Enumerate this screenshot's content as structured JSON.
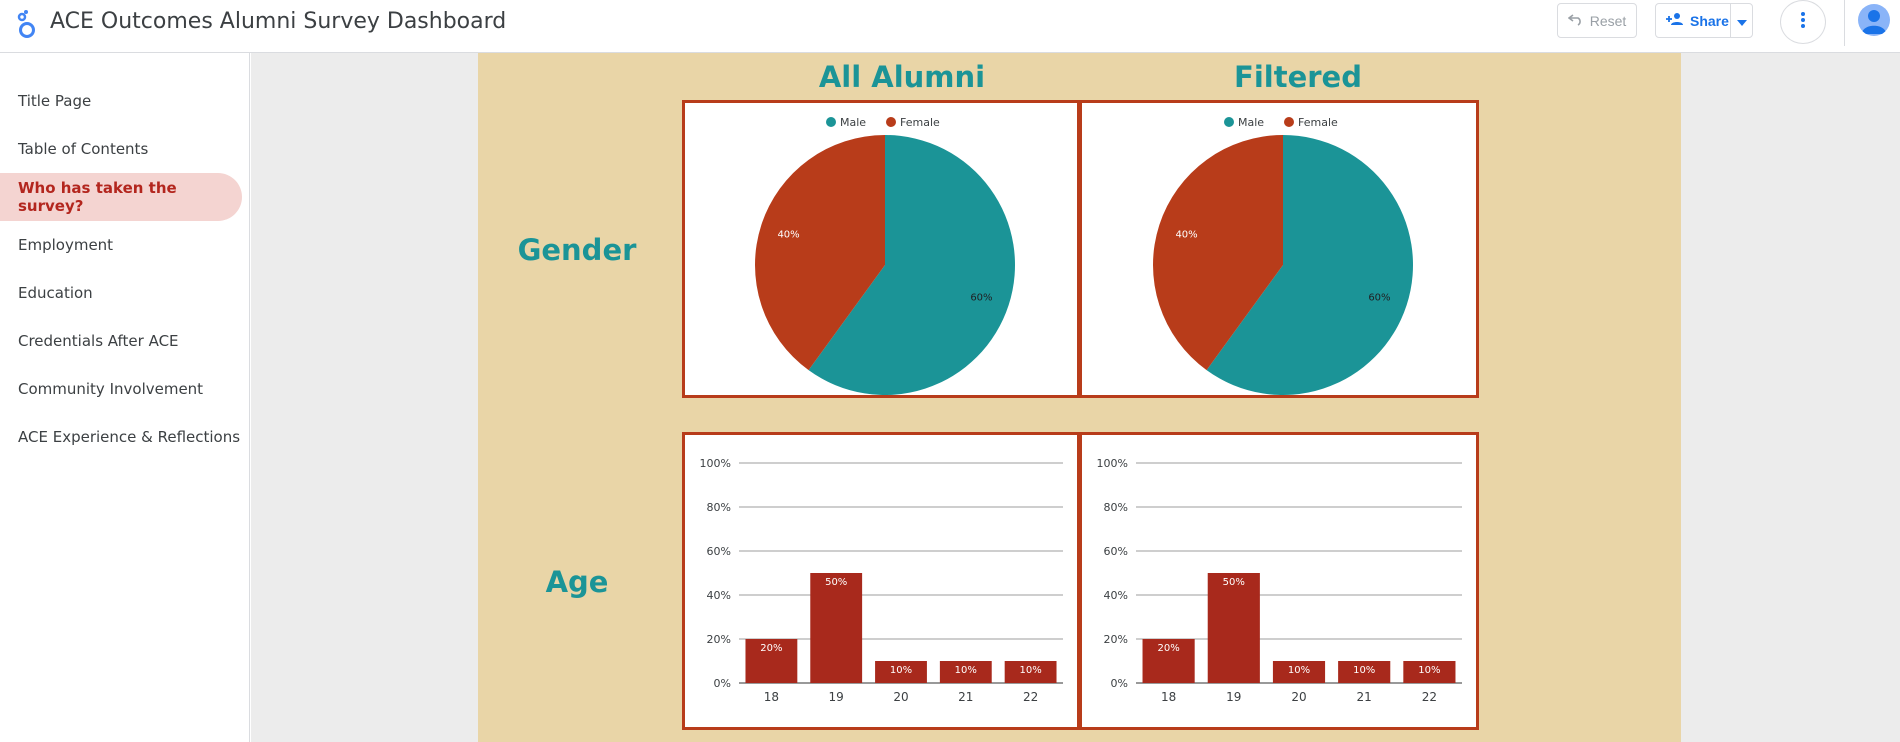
{
  "header": {
    "title": "ACE Outcomes Alumni Survey Dashboard",
    "reset_label": "Reset",
    "share_label": "Share"
  },
  "sidebar": {
    "items": [
      {
        "label": "Title Page",
        "active": false
      },
      {
        "label": "Table of Contents",
        "active": false
      },
      {
        "label": "Who has taken the survey?",
        "active": true
      },
      {
        "label": "Employment",
        "active": false
      },
      {
        "label": "Education",
        "active": false
      },
      {
        "label": "Credentials After ACE",
        "active": false
      },
      {
        "label": "Community Involvement",
        "active": false
      },
      {
        "label": "ACE Experience & Reflections",
        "active": false
      }
    ]
  },
  "report": {
    "col_titles": [
      "All Alumni",
      "Filtered"
    ],
    "row_labels": [
      "Gender",
      "Age"
    ]
  },
  "colors": {
    "teal": "#1b9497",
    "rust": "#b83c1a",
    "bar": "#a8291c",
    "accent": "#1a73e8",
    "canvas": "#e9d5a7"
  },
  "chart_data": [
    {
      "type": "pie",
      "panel": "All Alumni",
      "legend": [
        "Male",
        "Female"
      ],
      "slices": [
        {
          "label": "Male",
          "value": 60,
          "display": "60%",
          "color": "#1b9497"
        },
        {
          "label": "Female",
          "value": 40,
          "display": "40%",
          "color": "#b83c1a"
        }
      ],
      "legend_position": "top"
    },
    {
      "type": "pie",
      "panel": "Filtered",
      "legend": [
        "Male",
        "Female"
      ],
      "slices": [
        {
          "label": "Male",
          "value": 60,
          "display": "60%",
          "color": "#1b9497"
        },
        {
          "label": "Female",
          "value": 40,
          "display": "40%",
          "color": "#b83c1a"
        }
      ],
      "legend_position": "top"
    },
    {
      "type": "bar",
      "panel": "All Alumni",
      "categories": [
        "18",
        "19",
        "20",
        "21",
        "22"
      ],
      "values": [
        20,
        50,
        10,
        10,
        10
      ],
      "labels": [
        "20%",
        "50%",
        "10%",
        "10%",
        "10%"
      ],
      "yticks": [
        "0%",
        "20%",
        "40%",
        "60%",
        "80%",
        "100%"
      ],
      "ylim": [
        0,
        100
      ],
      "grid": true
    },
    {
      "type": "bar",
      "panel": "Filtered",
      "categories": [
        "18",
        "19",
        "20",
        "21",
        "22"
      ],
      "values": [
        20,
        50,
        10,
        10,
        10
      ],
      "labels": [
        "20%",
        "50%",
        "10%",
        "10%",
        "10%"
      ],
      "yticks": [
        "0%",
        "20%",
        "40%",
        "60%",
        "80%",
        "100%"
      ],
      "ylim": [
        0,
        100
      ],
      "grid": true
    }
  ]
}
